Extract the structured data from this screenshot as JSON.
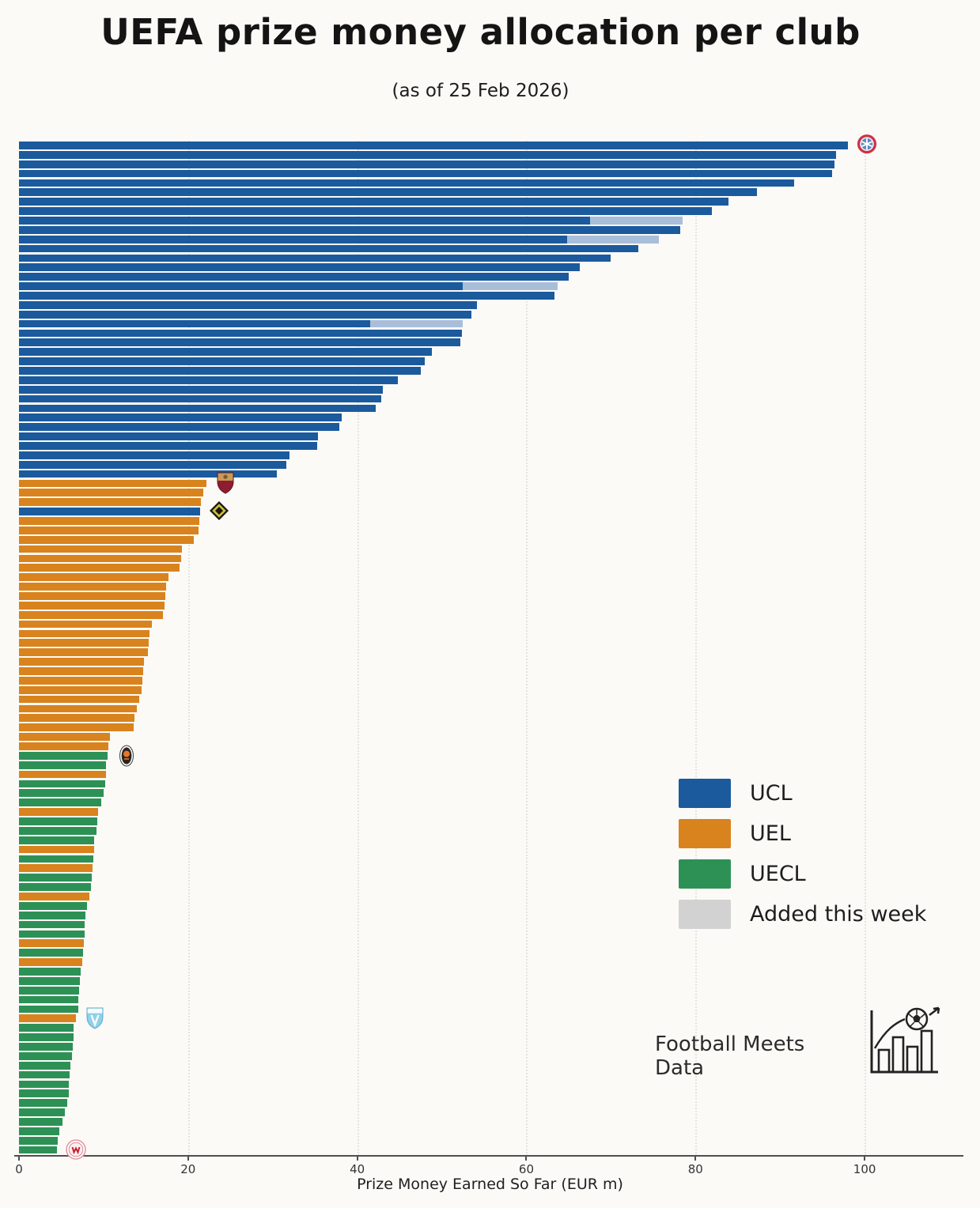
{
  "footer": {
    "brand": "Football Meets Data"
  },
  "chart_data": {
    "type": "bar",
    "orientation": "horizontal",
    "title": "UEFA prize money allocation per club",
    "subtitle": "(as of 25 Feb 2026)",
    "xlabel": "Prize Money Earned So Far (EUR m)",
    "unit": "EUR m",
    "xlim": [
      0,
      111.4
    ],
    "axis_max": 111.4,
    "ticks": [
      0,
      20,
      40,
      60,
      80,
      100
    ],
    "grid": "vertical-dotted",
    "legend_position": "center-right",
    "series_colors": {
      "UCL": "#1b5a9d",
      "UEL": "#d8831d",
      "UECL": "#2d9156"
    },
    "added_color": "#d2d2d2",
    "added_color_on_ucl": "#a9bed9",
    "legend": [
      {
        "label": "UCL",
        "color": "#1b5a9d"
      },
      {
        "label": "UEL",
        "color": "#d8831d"
      },
      {
        "label": "UECL",
        "color": "#2d9156"
      },
      {
        "label": "Added this week",
        "color": "#d2d2d2"
      }
    ],
    "bars": [
      {
        "competition": "UCL",
        "value": 98.0,
        "badge": "bayern"
      },
      {
        "competition": "UCL",
        "value": 96.6
      },
      {
        "competition": "UCL",
        "value": 96.4
      },
      {
        "competition": "UCL",
        "value": 96.2
      },
      {
        "competition": "UCL",
        "value": 91.7
      },
      {
        "competition": "UCL",
        "value": 87.3
      },
      {
        "competition": "UCL",
        "value": 83.9
      },
      {
        "competition": "UCL",
        "value": 81.9
      },
      {
        "competition": "UCL",
        "value": 67.5,
        "added": 11.0
      },
      {
        "competition": "UCL",
        "value": 78.2
      },
      {
        "competition": "UCL",
        "value": 64.8,
        "added": 10.9
      },
      {
        "competition": "UCL",
        "value": 73.2
      },
      {
        "competition": "UCL",
        "value": 70.0
      },
      {
        "competition": "UCL",
        "value": 66.3
      },
      {
        "competition": "UCL",
        "value": 65.0
      },
      {
        "competition": "UCL",
        "value": 52.5,
        "added": 11.2
      },
      {
        "competition": "UCL",
        "value": 63.3
      },
      {
        "competition": "UCL",
        "value": 54.2
      },
      {
        "competition": "UCL",
        "value": 53.5
      },
      {
        "competition": "UCL",
        "value": 41.5,
        "added": 11.0
      },
      {
        "competition": "UCL",
        "value": 52.4
      },
      {
        "competition": "UCL",
        "value": 52.2
      },
      {
        "competition": "UCL",
        "value": 48.8
      },
      {
        "competition": "UCL",
        "value": 48.0
      },
      {
        "competition": "UCL",
        "value": 47.5
      },
      {
        "competition": "UCL",
        "value": 44.8
      },
      {
        "competition": "UCL",
        "value": 43.0
      },
      {
        "competition": "UCL",
        "value": 42.8
      },
      {
        "competition": "UCL",
        "value": 42.2
      },
      {
        "competition": "UCL",
        "value": 38.2
      },
      {
        "competition": "UCL",
        "value": 37.9
      },
      {
        "competition": "UCL",
        "value": 35.4
      },
      {
        "competition": "UCL",
        "value": 35.3
      },
      {
        "competition": "UCL",
        "value": 32.0
      },
      {
        "competition": "UCL",
        "value": 31.6
      },
      {
        "competition": "UCL",
        "value": 30.5
      },
      {
        "competition": "UEL",
        "value": 22.2,
        "badge": "roma"
      },
      {
        "competition": "UEL",
        "value": 21.8
      },
      {
        "competition": "UEL",
        "value": 21.5
      },
      {
        "competition": "UCL",
        "value": 21.4,
        "badge": "young-boys"
      },
      {
        "competition": "UEL",
        "value": 21.3
      },
      {
        "competition": "UEL",
        "value": 21.2
      },
      {
        "competition": "UEL",
        "value": 20.7
      },
      {
        "competition": "UEL",
        "value": 19.3
      },
      {
        "competition": "UEL",
        "value": 19.2
      },
      {
        "competition": "UEL",
        "value": 19.0
      },
      {
        "competition": "UEL",
        "value": 17.7
      },
      {
        "competition": "UEL",
        "value": 17.4
      },
      {
        "competition": "UEL",
        "value": 17.3
      },
      {
        "competition": "UEL",
        "value": 17.2
      },
      {
        "competition": "UEL",
        "value": 17.0
      },
      {
        "competition": "UEL",
        "value": 15.7
      },
      {
        "competition": "UEL",
        "value": 15.4
      },
      {
        "competition": "UEL",
        "value": 15.3
      },
      {
        "competition": "UEL",
        "value": 15.2
      },
      {
        "competition": "UEL",
        "value": 14.8
      },
      {
        "competition": "UEL",
        "value": 14.7
      },
      {
        "competition": "UEL",
        "value": 14.6
      },
      {
        "competition": "UEL",
        "value": 14.5
      },
      {
        "competition": "UEL",
        "value": 14.2
      },
      {
        "competition": "UEL",
        "value": 13.9
      },
      {
        "competition": "UEL",
        "value": 13.7
      },
      {
        "competition": "UEL",
        "value": 13.6
      },
      {
        "competition": "UEL",
        "value": 10.8
      },
      {
        "competition": "UEL",
        "value": 10.6
      },
      {
        "competition": "UECL",
        "value": 10.5,
        "badge": "shakhtar"
      },
      {
        "competition": "UECL",
        "value": 10.3
      },
      {
        "competition": "UEL",
        "value": 10.3
      },
      {
        "competition": "UECL",
        "value": 10.2
      },
      {
        "competition": "UECL",
        "value": 10.0
      },
      {
        "competition": "UECL",
        "value": 9.7
      },
      {
        "competition": "UEL",
        "value": 9.4
      },
      {
        "competition": "UECL",
        "value": 9.3
      },
      {
        "competition": "UECL",
        "value": 9.2
      },
      {
        "competition": "UECL",
        "value": 8.9
      },
      {
        "competition": "UEL",
        "value": 8.9
      },
      {
        "competition": "UECL",
        "value": 8.8
      },
      {
        "competition": "UEL",
        "value": 8.7
      },
      {
        "competition": "UECL",
        "value": 8.6
      },
      {
        "competition": "UECL",
        "value": 8.5
      },
      {
        "competition": "UEL",
        "value": 8.3
      },
      {
        "competition": "UECL",
        "value": 8.0
      },
      {
        "competition": "UECL",
        "value": 7.9
      },
      {
        "competition": "UECL",
        "value": 7.8
      },
      {
        "competition": "UECL",
        "value": 7.8
      },
      {
        "competition": "UEL",
        "value": 7.7
      },
      {
        "competition": "UECL",
        "value": 7.6
      },
      {
        "competition": "UEL",
        "value": 7.5
      },
      {
        "competition": "UECL",
        "value": 7.3
      },
      {
        "competition": "UECL",
        "value": 7.2
      },
      {
        "competition": "UECL",
        "value": 7.1
      },
      {
        "competition": "UECL",
        "value": 7.0
      },
      {
        "competition": "UECL",
        "value": 7.0
      },
      {
        "competition": "UEL",
        "value": 6.7,
        "badge": "malmo"
      },
      {
        "competition": "UECL",
        "value": 6.5
      },
      {
        "competition": "UECL",
        "value": 6.5
      },
      {
        "competition": "UECL",
        "value": 6.4
      },
      {
        "competition": "UECL",
        "value": 6.3
      },
      {
        "competition": "UECL",
        "value": 6.1
      },
      {
        "competition": "UECL",
        "value": 6.0
      },
      {
        "competition": "UECL",
        "value": 5.9
      },
      {
        "competition": "UECL",
        "value": 5.9
      },
      {
        "competition": "UECL",
        "value": 5.7
      },
      {
        "competition": "UECL",
        "value": 5.4
      },
      {
        "competition": "UECL",
        "value": 5.1
      },
      {
        "competition": "UECL",
        "value": 4.8
      },
      {
        "competition": "UECL",
        "value": 4.6
      },
      {
        "competition": "UECL",
        "value": 4.5,
        "badge": "club-red-white"
      }
    ]
  }
}
